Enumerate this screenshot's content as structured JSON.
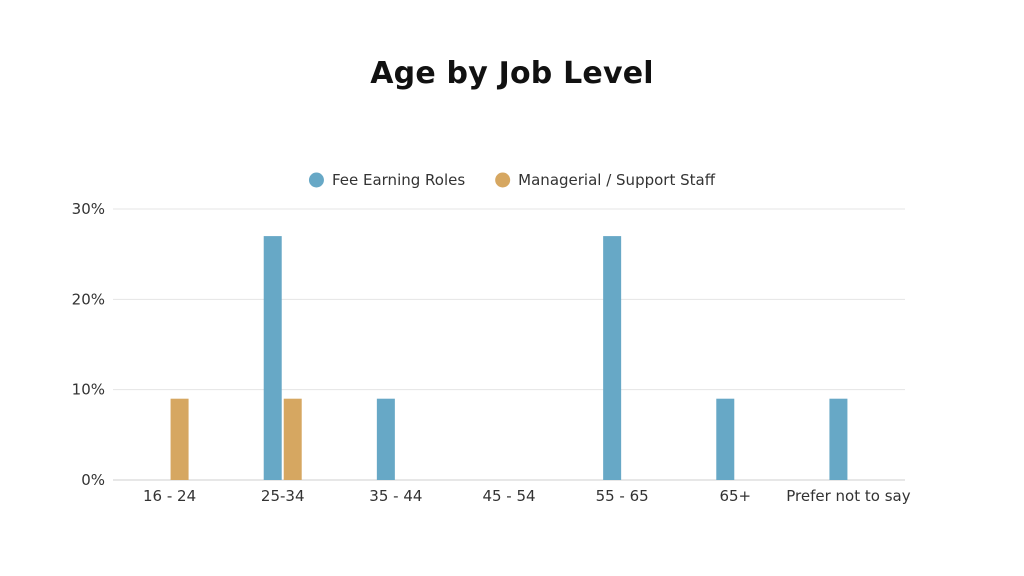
{
  "chart_data": {
    "type": "bar",
    "title": "Age by Job Level",
    "categories": [
      "16 - 24",
      "25-34",
      "35 - 44",
      "45 - 54",
      "55 - 65",
      "65+",
      "Prefer not to say"
    ],
    "series": [
      {
        "name": "Fee Earning Roles",
        "color": "#67a8c6",
        "values": [
          0,
          27,
          9,
          0,
          27,
          9,
          9
        ]
      },
      {
        "name": "Managerial / Support Staff",
        "color": "#d6a761",
        "values": [
          9,
          9,
          0,
          0,
          0,
          0,
          0
        ]
      }
    ],
    "ylim": [
      0,
      30
    ],
    "yticks": [
      0,
      10,
      20,
      30
    ],
    "ytick_labels": [
      "0%",
      "10%",
      "20%",
      "30%"
    ],
    "xlabel": "",
    "ylabel": "",
    "grid": true,
    "legend_position": "top-center"
  }
}
